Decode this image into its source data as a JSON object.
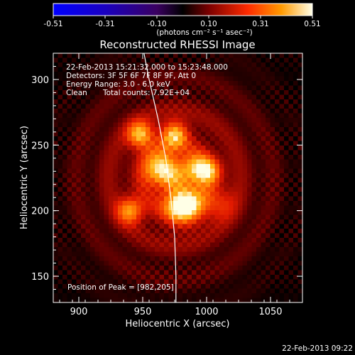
{
  "colorbar": {
    "ticks": [
      "-0.51",
      "-0.31",
      "-0.10",
      "0.10",
      "0.31",
      "0.51"
    ],
    "unit_label": "(photons cm⁻² s⁻¹ asec⁻²)"
  },
  "chart_data": {
    "type": "heatmap",
    "title": "Reconstructed RHESSI Image",
    "xlabel": "Heliocentric X (arcsec)",
    "ylabel": "Heliocentric Y (arcsec)",
    "xlim": [
      880,
      1075
    ],
    "ylim": [
      130,
      320
    ],
    "x_ticks": [
      900,
      950,
      1000,
      1050
    ],
    "y_ticks": [
      150,
      200,
      250,
      300
    ],
    "color_range": [
      -0.51,
      0.51
    ],
    "colormap": "rhessi-hot",
    "sources": [
      {
        "x": 982,
        "y": 205,
        "amp": 1.0,
        "sigma": 10
      },
      {
        "x": 965,
        "y": 232,
        "amp": 0.85,
        "sigma": 9
      },
      {
        "x": 990,
        "y": 232,
        "amp": 0.6,
        "sigma": 8
      },
      {
        "x": 1002,
        "y": 230,
        "amp": 0.55,
        "sigma": 7
      },
      {
        "x": 948,
        "y": 258,
        "amp": 0.75,
        "sigma": 7
      },
      {
        "x": 975,
        "y": 258,
        "amp": 0.72,
        "sigma": 7
      },
      {
        "x": 940,
        "y": 200,
        "amp": 0.62,
        "sigma": 7
      },
      {
        "x": 1010,
        "y": 205,
        "amp": 0.3,
        "sigma": 9
      }
    ],
    "limb_curve": [
      [
        951,
        320
      ],
      [
        955,
        300
      ],
      [
        962,
        270
      ],
      [
        968,
        240
      ],
      [
        972,
        210
      ],
      [
        975,
        180
      ],
      [
        976,
        150
      ],
      [
        976,
        130
      ]
    ],
    "annotations": {
      "time": "22-Feb-2013 15:21:32.000 to 15:23:48.000",
      "detectors": "Detectors: 3F 5F 6F 7F 8F 9F, Att 0",
      "energy": "Energy Range: 3.0 - 6.0 keV",
      "clean": "Clean",
      "counts": "Total counts: 7.92E+04",
      "peak": "Position of Peak = [982,205]"
    }
  },
  "footer": {
    "timestamp": "22-Feb-2013 09:22"
  }
}
